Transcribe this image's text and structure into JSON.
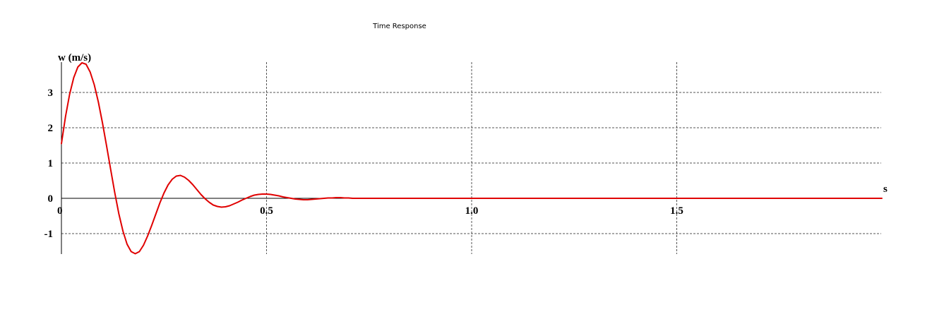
{
  "chart_data": {
    "type": "line",
    "title": "Time Response",
    "ylabel": "w (m/s)",
    "xlabel": "s",
    "xlim": [
      0,
      2.0
    ],
    "ylim": [
      -1.55,
      3.85
    ],
    "x_ticks": [
      {
        "value": 0,
        "label": "0"
      },
      {
        "value": 0.5,
        "label": "0.5"
      },
      {
        "value": 1.0,
        "label": "1.0"
      },
      {
        "value": 1.5,
        "label": "1.5"
      }
    ],
    "y_ticks": [
      {
        "value": 3,
        "label": "3"
      },
      {
        "value": 2,
        "label": "2"
      },
      {
        "value": 1,
        "label": "1"
      },
      {
        "value": 0,
        "label": "0"
      },
      {
        "value": -1,
        "label": "-1"
      }
    ],
    "grid": true,
    "series": [
      {
        "color": "#e00000",
        "x": [
          0,
          0.01,
          0.02,
          0.03,
          0.04,
          0.05,
          0.06,
          0.07,
          0.08,
          0.09,
          0.1,
          0.11,
          0.12,
          0.13,
          0.14,
          0.15,
          0.16,
          0.17,
          0.18,
          0.19,
          0.2,
          0.21,
          0.22,
          0.23,
          0.24,
          0.25,
          0.26,
          0.27,
          0.28,
          0.29,
          0.3,
          0.31,
          0.32,
          0.33,
          0.34,
          0.35,
          0.36,
          0.37,
          0.38,
          0.39,
          0.4,
          0.41,
          0.42,
          0.43,
          0.44,
          0.45,
          0.46,
          0.47,
          0.48,
          0.49,
          0.5,
          0.51,
          0.52,
          0.53,
          0.54,
          0.55,
          0.56,
          0.57,
          0.58,
          0.59,
          0.6,
          0.61,
          0.62,
          0.63,
          0.64,
          0.65,
          0.66,
          0.67,
          0.68,
          0.69,
          0.7,
          0.71,
          0.72,
          0.73,
          0.74,
          0.75,
          0.76,
          0.77,
          0.78,
          0.79,
          0.8,
          0.82,
          0.84,
          0.86,
          0.88,
          0.9,
          0.92,
          0.94,
          0.96,
          0.98,
          1.0,
          1.05,
          1.1,
          1.15,
          1.2,
          1.25,
          1.3,
          1.35,
          1.4,
          1.45,
          1.5,
          1.55,
          1.6,
          1.65,
          1.7,
          1.75,
          1.8,
          1.85,
          1.9,
          1.95,
          2.0
        ],
        "y": [
          1.55,
          2.32,
          2.95,
          3.42,
          3.72,
          3.84,
          3.8,
          3.58,
          3.22,
          2.73,
          2.14,
          1.49,
          0.82,
          0.16,
          -0.44,
          -0.93,
          -1.3,
          -1.51,
          -1.57,
          -1.51,
          -1.33,
          -1.07,
          -0.77,
          -0.45,
          -0.13,
          0.15,
          0.38,
          0.54,
          0.63,
          0.65,
          0.6,
          0.51,
          0.39,
          0.25,
          0.11,
          -0.01,
          -0.11,
          -0.19,
          -0.23,
          -0.25,
          -0.24,
          -0.21,
          -0.16,
          -0.11,
          -0.05,
          0.0,
          0.05,
          0.09,
          0.11,
          0.12,
          0.12,
          0.11,
          0.09,
          0.07,
          0.04,
          0.02,
          0.0,
          -0.02,
          -0.03,
          -0.04,
          -0.04,
          -0.03,
          -0.02,
          -0.01,
          0.0,
          0.01,
          0.01,
          0.02,
          0.02,
          0.01,
          0.01,
          0.0,
          0.0,
          0.0,
          0.0,
          0.0,
          0.0,
          0.0,
          0.0,
          0.0,
          0.0,
          0.0,
          0.0,
          0.0,
          0.0,
          0.0,
          0.0,
          0.0,
          0.0,
          0.0,
          0.0,
          0.0,
          0.0,
          0.0,
          0.0,
          0.0,
          0.0,
          0.0,
          0.0,
          0.0,
          0.0,
          0.0,
          0.0,
          0.0,
          0.0,
          0.0,
          0.0,
          0.0,
          0.0,
          0.0,
          0.0
        ]
      }
    ]
  }
}
